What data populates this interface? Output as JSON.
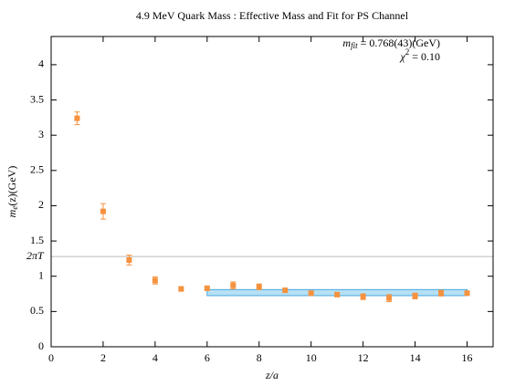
{
  "chart_data": {
    "type": "scatter",
    "title": "4.9 MeV Quark Mass : Effective Mass and Fit for PS Channel",
    "x_label": "z/a",
    "y_label": {
      "symbol": "m",
      "subscript": "e",
      "rest": "(z)(GeV)"
    },
    "xlim": [
      0,
      17
    ],
    "ylim": [
      0,
      4.4
    ],
    "xticks": [
      0,
      2,
      4,
      6,
      8,
      10,
      12,
      14,
      16
    ],
    "yticks": [
      0,
      0.5,
      1,
      1.5,
      2,
      2.5,
      3,
      3.5,
      4
    ],
    "series": [
      {
        "color": "#f5923e",
        "x": [
          1,
          2,
          3,
          4,
          5,
          6,
          7,
          8,
          9,
          10,
          11,
          12,
          13,
          14,
          15,
          16
        ],
        "values": [
          3.24,
          1.92,
          1.23,
          0.94,
          0.82,
          0.83,
          0.87,
          0.85,
          0.8,
          0.76,
          0.74,
          0.71,
          0.69,
          0.72,
          0.76,
          0.76
        ],
        "errors": [
          0.09,
          0.11,
          0.07,
          0.05,
          0.03,
          0.03,
          0.05,
          0.04,
          0.03,
          0.03,
          0.03,
          0.04,
          0.05,
          0.04,
          0.04,
          0.03
        ]
      }
    ],
    "reference_line": {
      "label": "2πT",
      "value": 1.28,
      "color": "#bbbbbb"
    },
    "fit": {
      "symbol": "m",
      "subscript": "fit",
      "text": "= 0.768(43)(GeV)",
      "value": 0.768,
      "error": 0.043,
      "xrange": [
        6,
        16
      ],
      "color": "#b6e0f5",
      "edge_color": "#4aa8df"
    },
    "chi2": {
      "symbol": "χ",
      "superscript": "2",
      "text": "= 0.10"
    }
  }
}
